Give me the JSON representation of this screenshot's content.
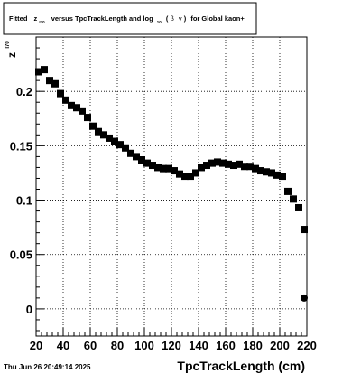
{
  "chart_data": {
    "type": "scatter",
    "title_parts": {
      "prefix": "Fitted",
      "z": "z",
      "z_sub": "I70",
      "middle": "versus TpcTrackLength and log",
      "log_sub": "10",
      "paren_open": "(",
      "beta": "β",
      "gamma": "γ",
      "paren_close": ")",
      "suffix": "for Global kaon+"
    },
    "xlabel": "TpcTrackLength (cm)",
    "ylabel": "z",
    "ylabel_sub": "I70",
    "timestamp": "Thu Jun 26 20:49:14 2025",
    "xlim": [
      20,
      220
    ],
    "ylim": [
      -0.025,
      0.25
    ],
    "xticks": [
      20,
      40,
      60,
      80,
      100,
      120,
      140,
      160,
      180,
      200,
      220
    ],
    "xtick_labels": [
      "20",
      "40",
      "60",
      "80",
      "100",
      "120",
      "140",
      "160",
      "180",
      "200",
      "220"
    ],
    "yticks": [
      0,
      0.05,
      0.1,
      0.15,
      0.2
    ],
    "ytick_labels": [
      "0",
      "0.05",
      "0.1",
      "0.15",
      "0.2"
    ],
    "grid": true,
    "marker_color": "#000000",
    "points": [
      {
        "x": 22,
        "y": 0.218
      },
      {
        "x": 26,
        "y": 0.22
      },
      {
        "x": 30,
        "y": 0.21
      },
      {
        "x": 34,
        "y": 0.207
      },
      {
        "x": 38,
        "y": 0.198
      },
      {
        "x": 42,
        "y": 0.192
      },
      {
        "x": 46,
        "y": 0.187
      },
      {
        "x": 50,
        "y": 0.185
      },
      {
        "x": 54,
        "y": 0.182
      },
      {
        "x": 58,
        "y": 0.176
      },
      {
        "x": 62,
        "y": 0.168
      },
      {
        "x": 66,
        "y": 0.163
      },
      {
        "x": 70,
        "y": 0.16
      },
      {
        "x": 74,
        "y": 0.157
      },
      {
        "x": 78,
        "y": 0.154
      },
      {
        "x": 82,
        "y": 0.151
      },
      {
        "x": 86,
        "y": 0.148
      },
      {
        "x": 90,
        "y": 0.143
      },
      {
        "x": 94,
        "y": 0.14
      },
      {
        "x": 98,
        "y": 0.137
      },
      {
        "x": 102,
        "y": 0.134
      },
      {
        "x": 106,
        "y": 0.132
      },
      {
        "x": 110,
        "y": 0.13
      },
      {
        "x": 114,
        "y": 0.129
      },
      {
        "x": 118,
        "y": 0.129
      },
      {
        "x": 122,
        "y": 0.127
      },
      {
        "x": 126,
        "y": 0.124
      },
      {
        "x": 130,
        "y": 0.122
      },
      {
        "x": 134,
        "y": 0.122
      },
      {
        "x": 138,
        "y": 0.125
      },
      {
        "x": 142,
        "y": 0.13
      },
      {
        "x": 146,
        "y": 0.132
      },
      {
        "x": 150,
        "y": 0.134
      },
      {
        "x": 154,
        "y": 0.135
      },
      {
        "x": 158,
        "y": 0.134
      },
      {
        "x": 162,
        "y": 0.133
      },
      {
        "x": 166,
        "y": 0.132
      },
      {
        "x": 170,
        "y": 0.133
      },
      {
        "x": 174,
        "y": 0.131
      },
      {
        "x": 178,
        "y": 0.131
      },
      {
        "x": 182,
        "y": 0.129
      },
      {
        "x": 186,
        "y": 0.127
      },
      {
        "x": 190,
        "y": 0.126
      },
      {
        "x": 194,
        "y": 0.125
      },
      {
        "x": 198,
        "y": 0.123
      },
      {
        "x": 202,
        "y": 0.122
      },
      {
        "x": 206,
        "y": 0.108
      },
      {
        "x": 210,
        "y": 0.101
      },
      {
        "x": 214,
        "y": 0.093
      },
      {
        "x": 218,
        "y": 0.073
      }
    ],
    "fit_point": {
      "x": 218,
      "y": 0.01
    }
  }
}
